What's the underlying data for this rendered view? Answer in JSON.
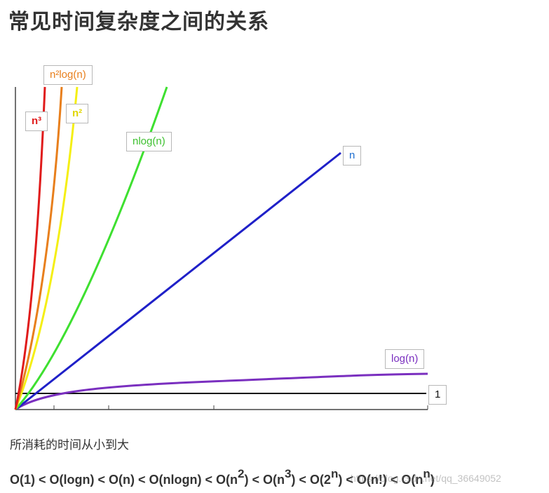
{
  "title": "常见时间复杂度之间的关系",
  "chart_data": {
    "type": "line",
    "xlabel": "",
    "ylabel": "",
    "grid": false,
    "series": [
      {
        "name": "n³",
        "color": "#e01b1b"
      },
      {
        "name": "n²log(n)",
        "color": "#e87f1c"
      },
      {
        "name": "n²",
        "color": "#f5ef14"
      },
      {
        "name": "nlog(n)",
        "color": "#3ee030"
      },
      {
        "name": "n",
        "color": "#1f20c8"
      },
      {
        "name": "log(n)",
        "color": "#7a2fbf"
      },
      {
        "name": "1",
        "color": "#111111"
      }
    ]
  },
  "labels": {
    "n3": "n³",
    "n2logn": "n²log(n)",
    "n2": "n²",
    "nlogn": "nlog(n)",
    "n": "n",
    "logn": "log(n)",
    "one": "1"
  },
  "caption": "所消耗的时间从小到大",
  "order": {
    "p1": "O(1) < O(logn) < O(n) < O(nlogn) < O(n",
    "e1": "2",
    "p2": ") < O(n",
    "e2": "3",
    "p3": ") < O(2",
    "e3": "n",
    "p4": ") < O(n!) < O(n",
    "e4": "n",
    "p5": ")"
  },
  "watermark": "https://blog.csdn.net/qq_36649052"
}
